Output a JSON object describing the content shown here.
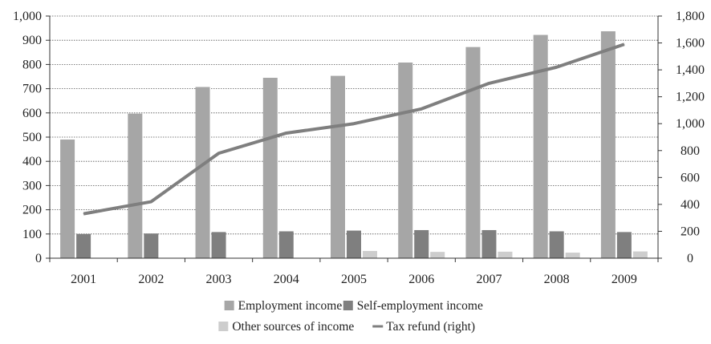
{
  "chart_data": {
    "type": "bar",
    "title": "",
    "xlabel": "",
    "ylabel": "",
    "categories": [
      "2001",
      "2002",
      "2003",
      "2004",
      "2005",
      "2006",
      "2007",
      "2008",
      "2009"
    ],
    "ylim": [
      0,
      1000
    ],
    "y2lim": [
      0,
      1800
    ],
    "y_ticks": [
      "0",
      "100",
      "200",
      "300",
      "400",
      "500",
      "600",
      "700",
      "800",
      "900",
      "1,000"
    ],
    "y2_ticks": [
      "0",
      "200",
      "400",
      "600",
      "800",
      "1,000",
      "1,200",
      "1,400",
      "1,600",
      "1,800"
    ],
    "grid": "horizontal dotted",
    "legend_position": "bottom",
    "series": [
      {
        "name": "Employment income",
        "kind": "bar",
        "axis": "left",
        "color": "#a6a6a6",
        "values": [
          490,
          597,
          707,
          745,
          753,
          808,
          872,
          922,
          937
        ]
      },
      {
        "name": "Self-employment income",
        "kind": "bar",
        "axis": "left",
        "color": "#7f7f7f",
        "values": [
          100,
          102,
          108,
          111,
          114,
          116,
          116,
          111,
          108
        ]
      },
      {
        "name": "Other sources of income",
        "kind": "bar",
        "axis": "left",
        "color": "#cdcdcd",
        "values": [
          0,
          0,
          0,
          0,
          30,
          26,
          27,
          23,
          28
        ]
      },
      {
        "name": "Tax refund (right)",
        "kind": "line",
        "axis": "right",
        "color": "#7f7f7f",
        "values": [
          330,
          420,
          780,
          930,
          1000,
          1110,
          1300,
          1420,
          1590
        ]
      }
    ]
  }
}
